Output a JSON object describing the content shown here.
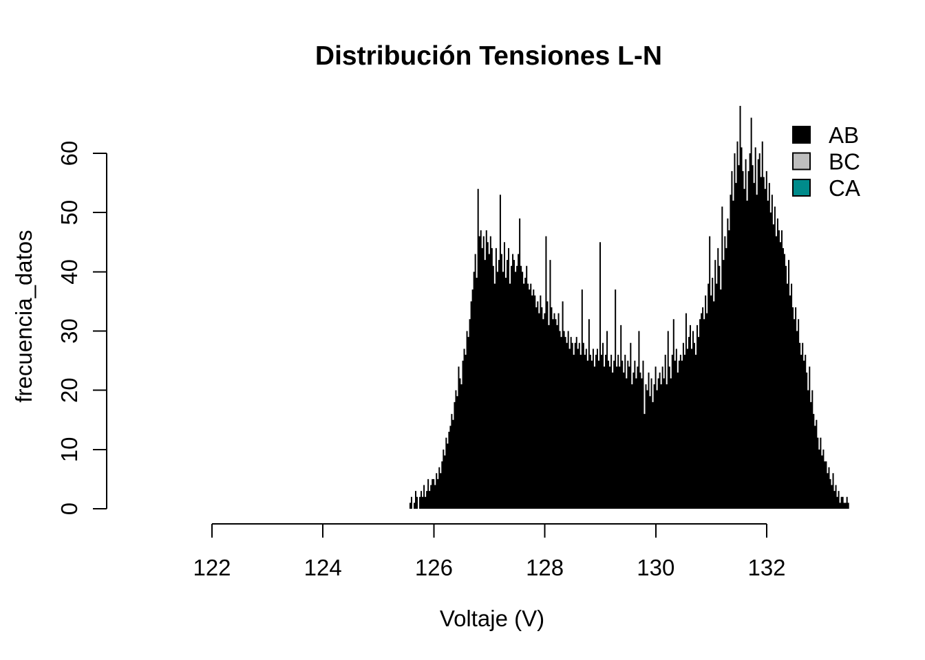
{
  "chart_data": {
    "type": "bar",
    "subtype": "histogram",
    "title": "Distribución Tensiones L-N",
    "xlabel": "Voltaje (V)",
    "ylabel": "frecuencia_datos",
    "x_ticks": [
      122,
      124,
      126,
      128,
      130,
      132
    ],
    "y_ticks": [
      0,
      10,
      20,
      30,
      40,
      50,
      60
    ],
    "xlim": [
      121.6,
      133.9
    ],
    "ylim": [
      0,
      68
    ],
    "grid": false,
    "legend_position": "topright",
    "background": "#ffffff",
    "bar_color": "#000000",
    "legend": [
      {
        "label": "AB",
        "color": "#000000"
      },
      {
        "label": "BC",
        "color": "#BEBEBE"
      },
      {
        "label": "CA",
        "color": "#008B8B"
      }
    ],
    "bin_start": 125.56,
    "bin_width": 0.025,
    "bins": [
      1,
      2,
      0,
      1,
      3,
      2,
      0,
      2,
      3,
      2,
      4,
      2,
      3,
      5,
      3,
      4,
      5,
      5,
      4,
      6,
      5,
      7,
      6,
      8,
      10,
      9,
      12,
      11,
      13,
      14,
      16,
      15,
      18,
      20,
      19,
      24,
      22,
      21,
      25,
      27,
      26,
      30,
      29,
      32,
      35,
      37,
      40,
      43,
      39,
      54,
      46,
      47,
      44,
      46,
      42,
      47,
      45,
      43,
      46,
      44,
      41,
      38,
      44,
      40,
      42,
      53,
      43,
      40,
      45,
      39,
      42,
      44,
      38,
      41,
      43,
      42,
      40,
      41,
      43,
      49,
      41,
      40,
      38,
      39,
      41,
      38,
      37,
      38,
      36,
      37,
      36,
      34,
      35,
      33,
      36,
      34,
      32,
      33,
      46,
      35,
      31,
      42,
      34,
      32,
      33,
      32,
      31,
      33,
      30,
      29,
      35,
      30,
      29,
      28,
      30,
      27,
      29,
      28,
      26,
      28,
      29,
      27,
      28,
      26,
      37,
      28,
      26,
      27,
      25,
      32,
      26,
      25,
      27,
      24,
      26,
      27,
      25,
      45,
      26,
      28,
      24,
      26,
      30,
      25,
      24,
      26,
      23,
      25,
      37,
      24,
      26,
      24,
      31,
      25,
      23,
      26,
      22,
      25,
      24,
      28,
      21,
      23,
      25,
      22,
      24,
      30,
      23,
      22,
      25,
      16,
      21,
      20,
      23,
      19,
      22,
      18,
      21,
      24,
      20,
      22,
      23,
      21,
      24,
      22,
      26,
      21,
      30,
      24,
      22,
      26,
      32,
      25,
      27,
      23,
      25,
      26,
      25,
      28,
      26,
      33,
      27,
      29,
      31,
      27,
      30,
      28,
      26,
      31,
      29,
      32,
      33,
      34,
      32,
      36,
      33,
      38,
      46,
      36,
      39,
      35,
      42,
      38,
      44,
      41,
      37,
      51,
      42,
      46,
      44,
      49,
      47,
      53,
      57,
      52,
      60,
      55,
      62,
      58,
      68,
      61,
      57,
      54,
      59,
      52,
      57,
      60,
      66,
      58,
      55,
      61,
      53,
      59,
      60,
      56,
      62,
      56,
      54,
      57,
      52,
      55,
      50,
      53,
      48,
      51,
      46,
      49,
      47,
      45,
      47,
      44,
      43,
      41,
      38,
      42,
      36,
      38,
      34,
      32,
      34,
      30,
      32,
      28,
      26,
      28,
      25,
      26,
      23,
      20,
      24,
      18,
      20,
      16,
      14,
      15,
      12,
      10,
      12,
      9,
      10,
      8,
      8,
      6,
      7,
      5,
      4,
      6,
      3,
      4,
      2,
      3,
      1,
      2,
      2,
      1,
      1,
      2,
      1
    ]
  }
}
